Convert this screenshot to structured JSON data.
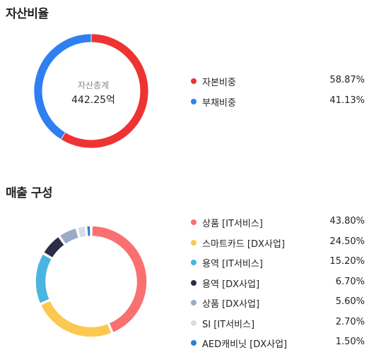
{
  "chart_data": [
    {
      "type": "pie",
      "title": "자산비율",
      "center": {
        "label": "자산총계",
        "value": "442.25억"
      },
      "slices": [
        {
          "label": "자본비중",
          "value": 58.87,
          "display": "58.87%",
          "color": "#ee3333"
        },
        {
          "label": "부채비중",
          "value": 41.13,
          "display": "41.13%",
          "color": "#2f7ff0"
        }
      ]
    },
    {
      "type": "pie",
      "title": "매출 구성",
      "slices": [
        {
          "label": "상품 [IT서비스]",
          "value": 43.8,
          "display": "43.80%",
          "color": "#fa7070"
        },
        {
          "label": "스마트카드 [DX사업]",
          "value": 24.5,
          "display": "24.50%",
          "color": "#fdc850"
        },
        {
          "label": "용역 [IT서비스]",
          "value": 15.2,
          "display": "15.20%",
          "color": "#4ab5e0"
        },
        {
          "label": "용역 [DX사업]",
          "value": 6.7,
          "display": "6.70%",
          "color": "#2b2d47"
        },
        {
          "label": "상품 [DX사업]",
          "value": 5.6,
          "display": "5.60%",
          "color": "#9aabc6"
        },
        {
          "label": "SI [IT서비스]",
          "value": 2.7,
          "display": "2.70%",
          "color": "#d5dde8"
        },
        {
          "label": "AED캐비닛 [DX사업]",
          "value": 1.5,
          "display": "1.50%",
          "color": "#2d7fd0"
        }
      ]
    }
  ]
}
